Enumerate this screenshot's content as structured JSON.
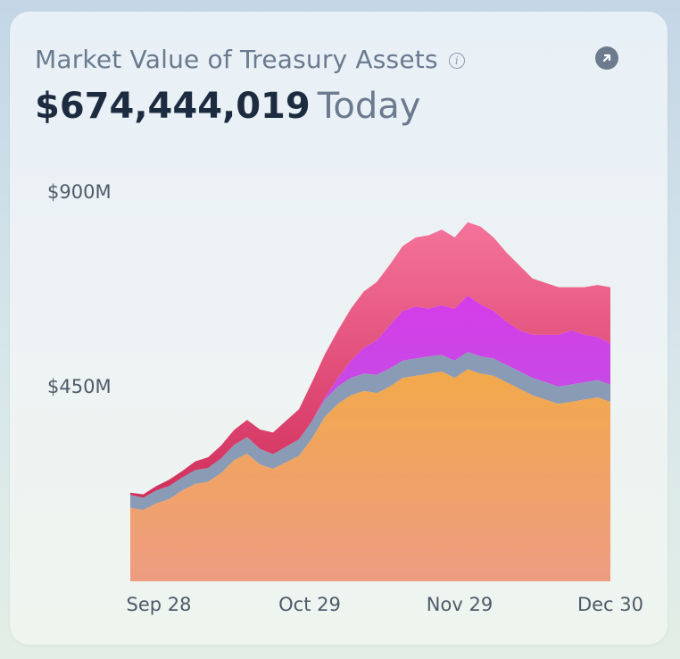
{
  "header": {
    "title": "Market Value of Treasury Assets",
    "info_icon": "info-icon",
    "expand_icon": "arrow-up-right-icon",
    "value": "$674,444,019",
    "value_suffix": "Today"
  },
  "chart_data": {
    "type": "area",
    "stacked": true,
    "grid": false,
    "legend": "none",
    "x_ticks": [
      "Sep 28",
      "Oct 29",
      "Nov 29",
      "Dec 30"
    ],
    "y_ticks": [
      "$450M",
      "$900M"
    ],
    "ylim": [
      0,
      900
    ],
    "y_unit": "$M",
    "x_count": 38,
    "colors": {
      "base": [
        "#f2a94a",
        "#ee9c82"
      ],
      "second": "#8a9bb5",
      "third": [
        "#d53ce8",
        "#b75ae0"
      ],
      "top": [
        "#f4739a",
        "#d12f5c"
      ]
    },
    "series": [
      {
        "values": [
          170,
          165,
          180,
          190,
          210,
          225,
          230,
          250,
          280,
          295,
          270,
          260,
          275,
          290,
          330,
          380,
          410,
          430,
          440,
          435,
          450,
          470,
          475,
          480,
          485,
          470,
          490,
          480,
          475,
          460,
          445,
          430,
          420,
          410,
          415,
          420,
          425,
          415
        ]
      },
      {
        "values": [
          30,
          28,
          30,
          30,
          30,
          32,
          32,
          34,
          35,
          38,
          36,
          34,
          36,
          38,
          40,
          40,
          40,
          40,
          40,
          42,
          42,
          40,
          40,
          40,
          38,
          40,
          40,
          40,
          40,
          40,
          40,
          40,
          40,
          40,
          40,
          40,
          40,
          40
        ]
      },
      {
        "values": [
          0,
          0,
          0,
          0,
          0,
          0,
          0,
          0,
          0,
          0,
          0,
          0,
          0,
          0,
          0,
          5,
          20,
          40,
          60,
          80,
          100,
          115,
          120,
          110,
          115,
          120,
          130,
          120,
          110,
          100,
          95,
          100,
          110,
          120,
          125,
          110,
          100,
          95
        ]
      },
      {
        "values": [
          5,
          8,
          10,
          15,
          15,
          20,
          25,
          30,
          35,
          40,
          45,
          50,
          60,
          70,
          90,
          100,
          110,
          120,
          130,
          135,
          140,
          150,
          160,
          170,
          175,
          165,
          170,
          180,
          170,
          160,
          150,
          130,
          120,
          110,
          100,
          110,
          120,
          130
        ]
      }
    ]
  }
}
